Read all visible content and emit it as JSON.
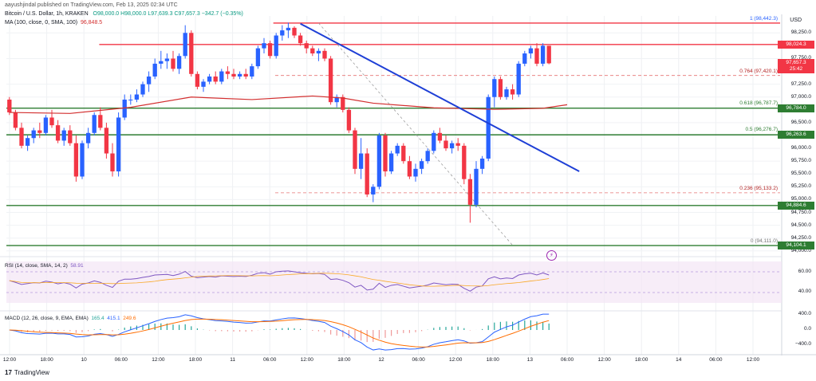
{
  "header": {
    "author": "aayushjindal published on TradingView.com, Feb 13, 2025 02:34 UTC",
    "symbol": "Bitcoin / U.S. Dollar, 1h, KRAKEN",
    "ohlc": "O98,000.0  H98,000.0  L97,639.3  C97,657.3  −342.7 (−0.35%)",
    "ma_label": "MA (100, close, 0, SMA, 100)",
    "ma_value": "96,848.5"
  },
  "currency": "USD",
  "price_axis": {
    "ticks": [
      "98,250.0",
      "97,750.0",
      "97,250.0",
      "97,000.0",
      "96,500.0",
      "96,000.0",
      "95,750.0",
      "95,500.0",
      "95,250.0",
      "95,000.0",
      "94,750.0",
      "94,500.0",
      "94,250.0",
      "94,000.0"
    ],
    "tick_values": [
      98250,
      97750,
      97250,
      97000,
      96500,
      96000,
      95750,
      95500,
      95250,
      95000,
      94750,
      94500,
      94250,
      94000
    ],
    "pills": [
      {
        "text": "98,024.3",
        "value": 98024.3,
        "color": "#f23645"
      },
      {
        "text": "97,657.3",
        "value": 97657.3,
        "color": "#f23645"
      },
      {
        "text": "25:42",
        "value": 97540,
        "color": "#f23645"
      },
      {
        "text": "96,784.0",
        "value": 96784,
        "color": "#2e7d32"
      },
      {
        "text": "96,263.6",
        "value": 96263.6,
        "color": "#2e7d32"
      },
      {
        "text": "94,884.6",
        "value": 94884.6,
        "color": "#2e7d32"
      },
      {
        "text": "94,104.1",
        "value": 94104.1,
        "color": "#2e7d32"
      }
    ]
  },
  "fib_levels": [
    {
      "label": "1 (98,442.3)",
      "value": 98442.3,
      "color": "#2962ff"
    },
    {
      "label": "0.764 (97,420.1)",
      "value": 97420.1,
      "color": "#b22222"
    },
    {
      "label": "0.618 (96,787.7)",
      "value": 96787.7,
      "color": "#2e7d32"
    },
    {
      "label": "0.5 (96,276.7)",
      "value": 96276.7,
      "color": "#2e7d32"
    },
    {
      "label": "0.236 (95,133.2)",
      "value": 95133.2,
      "color": "#b22222"
    },
    {
      "label": "0 (94,111.0)",
      "value": 94111.0,
      "color": "#777777"
    }
  ],
  "horizontal_lines": [
    {
      "value": 98442.3,
      "color": "#f23645",
      "from": 0.345
    },
    {
      "value": 98024.3,
      "color": "#f23645",
      "from": 0.12
    },
    {
      "value": 96784.0,
      "color": "#2e7d32",
      "from": 0.0
    },
    {
      "value": 96263.6,
      "color": "#2e7d32",
      "from": 0.0
    },
    {
      "value": 94884.6,
      "color": "#2e7d32",
      "from": 0.0
    },
    {
      "value": 94104.1,
      "color": "#2e7d32",
      "from": 0.0
    }
  ],
  "time_axis": [
    "12:00",
    "18:00",
    "10",
    "06:00",
    "12:00",
    "18:00",
    "11",
    "06:00",
    "12:00",
    "18:00",
    "12",
    "06:00",
    "12:00",
    "18:00",
    "13",
    "06:00",
    "12:00",
    "18:00",
    "14",
    "06:00",
    "12:00"
  ],
  "rsi": {
    "label": "RSI (14, close, SMA, 14, 2)",
    "value": "58.91",
    "ticks": [
      "60.00",
      "40.00"
    ]
  },
  "macd": {
    "label": "MACD (12, 26, close, 9, EMA, EMA)",
    "v1": "165.4",
    "v2": "415.1",
    "v3": "249.6",
    "ticks": [
      "400.0",
      "0.0",
      "−400.0"
    ]
  },
  "logo_text": "TradingView",
  "chart_data": {
    "type": "candlestick",
    "title": "Bitcoin / U.S. Dollar, 1h, KRAKEN",
    "ylim": [
      93950,
      98550
    ],
    "candles": [
      [
        96950,
        97000,
        96650,
        96700
      ],
      [
        96700,
        96750,
        96350,
        96400
      ],
      [
        96400,
        96500,
        96000,
        96050
      ],
      [
        96050,
        96250,
        95950,
        96200
      ],
      [
        96200,
        96400,
        96100,
        96350
      ],
      [
        96350,
        96500,
        96200,
        96300
      ],
      [
        96300,
        96650,
        96250,
        96600
      ],
      [
        96600,
        96750,
        96400,
        96450
      ],
      [
        96450,
        96550,
        96100,
        96150
      ],
      [
        96150,
        96400,
        96050,
        96350
      ],
      [
        96350,
        96450,
        96050,
        96100
      ],
      [
        96100,
        96250,
        95350,
        95450
      ],
      [
        95450,
        96150,
        95400,
        96100
      ],
      [
        96100,
        96400,
        96000,
        96300
      ],
      [
        96300,
        96700,
        96250,
        96650
      ],
      [
        96650,
        96800,
        96350,
        96400
      ],
      [
        96400,
        96500,
        95800,
        95900
      ],
      [
        95900,
        96100,
        95450,
        95550
      ],
      [
        95550,
        96700,
        95450,
        96600
      ],
      [
        96600,
        97050,
        96550,
        96950
      ],
      [
        96950,
        97050,
        96850,
        96950
      ],
      [
        96950,
        97150,
        96900,
        97050
      ],
      [
        97050,
        97300,
        97000,
        97250
      ],
      [
        97250,
        97500,
        97100,
        97400
      ],
      [
        97400,
        97750,
        97350,
        97650
      ],
      [
        97650,
        97900,
        97550,
        97700
      ],
      [
        97700,
        97850,
        97550,
        97750
      ],
      [
        97750,
        97900,
        97500,
        97550
      ],
      [
        97550,
        97850,
        97450,
        97800
      ],
      [
        97800,
        98400,
        97750,
        98250
      ],
      [
        98250,
        98300,
        97400,
        97450
      ],
      [
        97450,
        97500,
        97150,
        97200
      ],
      [
        97200,
        97350,
        97100,
        97300
      ],
      [
        97300,
        97450,
        97250,
        97400
      ],
      [
        97400,
        97500,
        97250,
        97300
      ],
      [
        97300,
        97550,
        97250,
        97500
      ],
      [
        97500,
        97600,
        97350,
        97450
      ],
      [
        97450,
        97550,
        97350,
        97400
      ],
      [
        97400,
        97500,
        97350,
        97450
      ],
      [
        97450,
        97550,
        97350,
        97400
      ],
      [
        97400,
        97650,
        97350,
        97600
      ],
      [
        97600,
        98000,
        97550,
        97950
      ],
      [
        97950,
        98150,
        97850,
        98050
      ],
      [
        98050,
        98100,
        97750,
        97800
      ],
      [
        97800,
        98250,
        97750,
        98200
      ],
      [
        98200,
        98400,
        98100,
        98300
      ],
      [
        98300,
        98450,
        98150,
        98350
      ],
      [
        98350,
        98380,
        98150,
        98200
      ],
      [
        98200,
        98250,
        98000,
        98050
      ],
      [
        98050,
        98100,
        97850,
        97950
      ],
      [
        97950,
        98000,
        97800,
        97850
      ],
      [
        97850,
        97950,
        97700,
        97900
      ],
      [
        97900,
        97950,
        97700,
        97750
      ],
      [
        97750,
        97800,
        96850,
        96900
      ],
      [
        96900,
        97050,
        96800,
        97000
      ],
      [
        97000,
        97050,
        96700,
        96750
      ],
      [
        96750,
        96800,
        96300,
        96350
      ],
      [
        96350,
        96400,
        95500,
        95600
      ],
      [
        95600,
        96200,
        95400,
        95900
      ],
      [
        95900,
        96000,
        95050,
        95100
      ],
      [
        95100,
        95300,
        94950,
        95250
      ],
      [
        95250,
        96300,
        95200,
        96250
      ],
      [
        96250,
        96300,
        95450,
        95550
      ],
      [
        95550,
        95950,
        95500,
        95900
      ],
      [
        95900,
        96100,
        95850,
        96050
      ],
      [
        96050,
        96100,
        95700,
        95750
      ],
      [
        95750,
        95850,
        95400,
        95450
      ],
      [
        95450,
        95700,
        95350,
        95600
      ],
      [
        95600,
        95800,
        95500,
        95750
      ],
      [
        95750,
        96000,
        95700,
        95950
      ],
      [
        95950,
        96350,
        95900,
        96300
      ],
      [
        96300,
        96400,
        96100,
        96150
      ],
      [
        96150,
        96250,
        95950,
        96000
      ],
      [
        96000,
        96150,
        95900,
        96100
      ],
      [
        96100,
        96200,
        95950,
        96050
      ],
      [
        96050,
        96100,
        95300,
        95400
      ],
      [
        95400,
        95500,
        94550,
        94900
      ],
      [
        94900,
        95750,
        94850,
        95600
      ],
      [
        95600,
        95850,
        95500,
        95800
      ],
      [
        95800,
        97050,
        95750,
        97000
      ],
      [
        97000,
        97400,
        96800,
        97350
      ],
      [
        97350,
        97400,
        96950,
        97000
      ],
      [
        97000,
        97200,
        96950,
        97150
      ],
      [
        97150,
        97250,
        96950,
        97050
      ],
      [
        97050,
        97700,
        97000,
        97650
      ],
      [
        97650,
        97900,
        97600,
        97850
      ],
      [
        97850,
        98000,
        97750,
        97950
      ],
      [
        97950,
        98050,
        97600,
        97650
      ],
      [
        97650,
        98050,
        97600,
        98000
      ],
      [
        98000,
        98000,
        97639.3,
        97657.3
      ]
    ],
    "ma100": [
      [
        0,
        96700
      ],
      [
        10,
        96680
      ],
      [
        20,
        96800
      ],
      [
        30,
        97000
      ],
      [
        40,
        96950
      ],
      [
        50,
        97020
      ],
      [
        55,
        96980
      ],
      [
        60,
        96880
      ],
      [
        70,
        96790
      ],
      [
        80,
        96760
      ],
      [
        88,
        96780
      ],
      [
        92,
        96850
      ]
    ],
    "trendline": {
      "from": [
        48,
        98430
      ],
      "to": [
        94,
        95550
      ]
    },
    "fib_diagonal": {
      "from": [
        51,
        98442.3
      ],
      "to": [
        83,
        94111.0
      ]
    }
  }
}
